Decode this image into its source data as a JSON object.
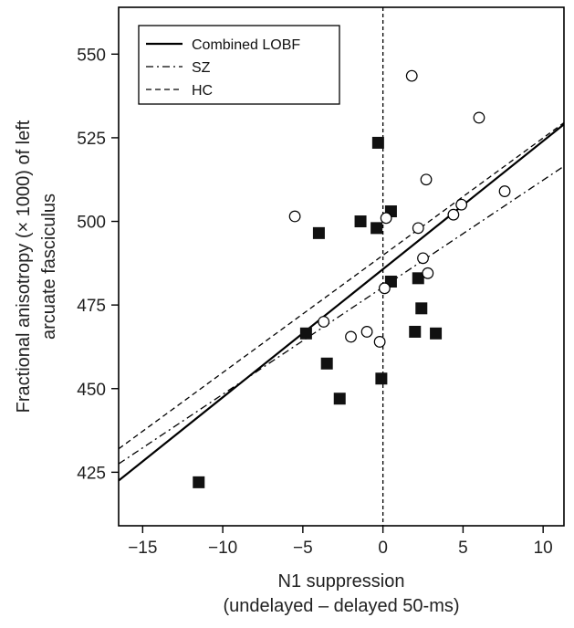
{
  "chart_data": {
    "type": "scatter",
    "xlabel": "N1 suppression",
    "xlabel_line2": "(undelayed – delayed 50-ms)",
    "ylabel": "Fractional anisotropy (× 1000) of left",
    "ylabel_line2": "arcuate fasciculus",
    "xlim": [
      -16.5,
      11.3
    ],
    "ylim": [
      409,
      564
    ],
    "xticks": [
      -15,
      -10,
      -5,
      0,
      5,
      10
    ],
    "xtick_labels": [
      "−15",
      "−10",
      "−5",
      "0",
      "5",
      "10"
    ],
    "yticks": [
      425,
      450,
      475,
      500,
      525,
      550
    ],
    "ytick_labels": [
      "425",
      "450",
      "475",
      "500",
      "525",
      "550"
    ],
    "vline_x": 0,
    "legend": {
      "position": "top-left",
      "entries": [
        {
          "label": "Combined LOBF",
          "style": "solid"
        },
        {
          "label": "SZ",
          "style": "dashdot"
        },
        {
          "label": "HC",
          "style": "dashed"
        }
      ]
    },
    "series": [
      {
        "name": "SZ",
        "marker": "filled-square",
        "points": [
          [
            -11.5,
            422
          ],
          [
            -4.8,
            466.5
          ],
          [
            -4.0,
            496.5
          ],
          [
            -3.5,
            457.5
          ],
          [
            -2.7,
            447
          ],
          [
            -1.4,
            500
          ],
          [
            -0.4,
            498
          ],
          [
            -0.3,
            523.5
          ],
          [
            -0.1,
            453
          ],
          [
            0.5,
            482
          ],
          [
            0.5,
            503
          ],
          [
            2.0,
            467
          ],
          [
            2.2,
            483
          ],
          [
            2.4,
            474
          ],
          [
            3.3,
            466.5
          ]
        ]
      },
      {
        "name": "HC",
        "marker": "open-circle",
        "points": [
          [
            -5.5,
            501.5
          ],
          [
            -3.7,
            470
          ],
          [
            -2.0,
            465.5
          ],
          [
            -1.0,
            467
          ],
          [
            -0.2,
            464
          ],
          [
            0.1,
            480
          ],
          [
            0.2,
            501
          ],
          [
            1.8,
            543.5
          ],
          [
            2.2,
            498
          ],
          [
            2.5,
            489
          ],
          [
            2.7,
            512.5
          ],
          [
            2.8,
            484.5
          ],
          [
            4.4,
            502
          ],
          [
            4.9,
            505
          ],
          [
            6.0,
            531
          ],
          [
            7.6,
            509
          ]
        ]
      }
    ],
    "fit_lines": [
      {
        "name": "Combined LOBF",
        "style": "solid",
        "x": [
          -16.5,
          11.3
        ],
        "y": [
          422.5,
          529
        ]
      },
      {
        "name": "SZ",
        "style": "dashdot",
        "x": [
          -16.5,
          11.3
        ],
        "y": [
          427.5,
          516.5
        ]
      },
      {
        "name": "HC",
        "style": "dashed",
        "x": [
          -16.5,
          11.3
        ],
        "y": [
          432,
          529.5
        ]
      }
    ]
  }
}
